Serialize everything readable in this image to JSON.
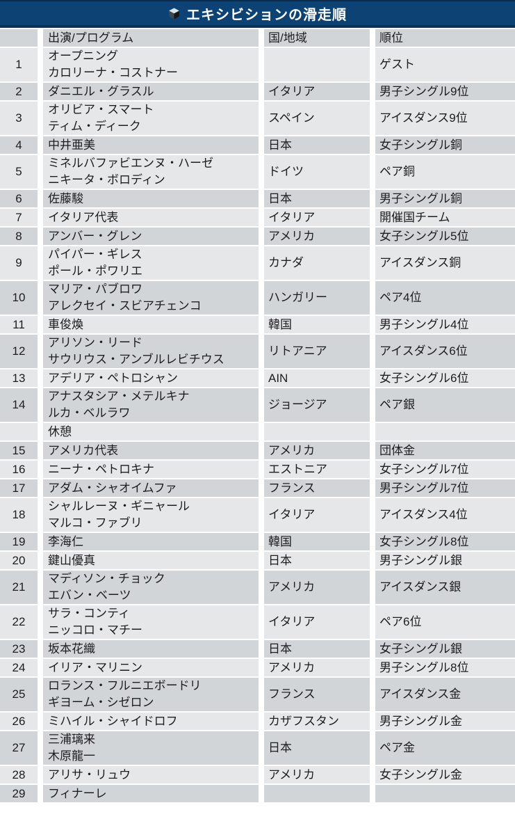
{
  "title": {
    "text": "エキシビションの滑走順",
    "icon": "cube-icon"
  },
  "colors": {
    "title_bar": "#0c4374",
    "title_bar_top_edge": "#0a2b4b",
    "title_bar_bottom_edge": "#0a3158",
    "row_dark": "#d2d5d8",
    "row_light": "#e6e7e9",
    "text": "#1d1d1f",
    "title_text": "#ffffff"
  },
  "table": {
    "headers": [
      "",
      "出演/プログラム",
      "国/地域",
      "順位"
    ],
    "rows": [
      {
        "no": "1",
        "performer": [
          "オープニング",
          "カロリーナ・コストナー"
        ],
        "country": "",
        "rank": "ゲスト"
      },
      {
        "no": "2",
        "performer": [
          "ダニエル・グラスル"
        ],
        "country": "イタリア",
        "rank": "男子シングル9位"
      },
      {
        "no": "3",
        "performer": [
          "オリビア・スマート",
          "ティム・ディーク"
        ],
        "country": "スペイン",
        "rank": "アイスダンス9位"
      },
      {
        "no": "4",
        "performer": [
          "中井亜美"
        ],
        "country": "日本",
        "rank": "女子シングル銅"
      },
      {
        "no": "5",
        "performer": [
          "ミネルバファビエンヌ・ハーゼ",
          "ニキータ・ボロディン"
        ],
        "country": "ドイツ",
        "rank": "ペア銅"
      },
      {
        "no": "6",
        "performer": [
          "佐藤駿"
        ],
        "country": "日本",
        "rank": "男子シングル銅"
      },
      {
        "no": "7",
        "performer": [
          "イタリア代表"
        ],
        "country": "イタリア",
        "rank": "開催国チーム"
      },
      {
        "no": "8",
        "performer": [
          "アンバー・グレン"
        ],
        "country": "アメリカ",
        "rank": "女子シングル5位"
      },
      {
        "no": "9",
        "performer": [
          "パイパー・ギレス",
          "ポール・ポワリエ"
        ],
        "country": "カナダ",
        "rank": "アイスダンス銅"
      },
      {
        "no": "10",
        "performer": [
          "マリア・パブロワ",
          "アレクセイ・スビアチェンコ"
        ],
        "country": "ハンガリー",
        "rank": "ペア4位"
      },
      {
        "no": "11",
        "performer": [
          "車俊煥"
        ],
        "country": "韓国",
        "rank": "男子シングル4位"
      },
      {
        "no": "12",
        "performer": [
          "アリソン・リード",
          "サウリウス・アンブルレビチウス"
        ],
        "country": "リトアニア",
        "rank": "アイスダンス6位"
      },
      {
        "no": "13",
        "performer": [
          "アデリア・ペトロシャン"
        ],
        "country": "AIN",
        "rank": "女子シングル6位"
      },
      {
        "no": "14",
        "performer": [
          "アナスタシア・メテルキナ",
          "ルカ・ベルラワ"
        ],
        "country": "ジョージア",
        "rank": "ペア銀"
      },
      {
        "no": "",
        "performer": [
          "休憩"
        ],
        "country": "",
        "rank": ""
      },
      {
        "no": "15",
        "performer": [
          "アメリカ代表"
        ],
        "country": "アメリカ",
        "rank": "団体金"
      },
      {
        "no": "16",
        "performer": [
          "ニーナ・ペトロキナ"
        ],
        "country": "エストニア",
        "rank": "女子シングル7位"
      },
      {
        "no": "17",
        "performer": [
          "アダム・シャオイムファ"
        ],
        "country": "フランス",
        "rank": "男子シングル7位"
      },
      {
        "no": "18",
        "performer": [
          "シャルレーヌ・ギニャール",
          "マルコ・ファブリ"
        ],
        "country": "イタリア",
        "rank": "アイスダンス4位"
      },
      {
        "no": "19",
        "performer": [
          "李海仁"
        ],
        "country": "韓国",
        "rank": "女子シングル8位"
      },
      {
        "no": "20",
        "performer": [
          "鍵山優真"
        ],
        "country": "日本",
        "rank": "男子シングル銀"
      },
      {
        "no": "21",
        "performer": [
          "マディソン・チョック",
          "エバン・ベーツ"
        ],
        "country": "アメリカ",
        "rank": "アイスダンス銀"
      },
      {
        "no": "22",
        "performer": [
          "サラ・コンティ",
          "ニッコロ・マチー"
        ],
        "country": "イタリア",
        "rank": "ペア6位"
      },
      {
        "no": "23",
        "performer": [
          "坂本花織"
        ],
        "country": "日本",
        "rank": "女子シングル銀"
      },
      {
        "no": "24",
        "performer": [
          "イリア・マリニン"
        ],
        "country": "アメリカ",
        "rank": "男子シングル8位"
      },
      {
        "no": "25",
        "performer": [
          "ロランス・フルニエボードリ",
          "ギヨーム・シゼロン"
        ],
        "country": "フランス",
        "rank": "アイスダンス金"
      },
      {
        "no": "26",
        "performer": [
          "ミハイル・シャイドロフ"
        ],
        "country": "カザフスタン",
        "rank": "男子シングル金"
      },
      {
        "no": "27",
        "performer": [
          "三浦璃来",
          "木原龍一"
        ],
        "country": "日本",
        "rank": "ペア金"
      },
      {
        "no": "28",
        "performer": [
          "アリサ・リュウ"
        ],
        "country": "アメリカ",
        "rank": "女子シングル金"
      },
      {
        "no": "29",
        "performer": [
          "フィナーレ"
        ],
        "country": "",
        "rank": ""
      }
    ]
  }
}
